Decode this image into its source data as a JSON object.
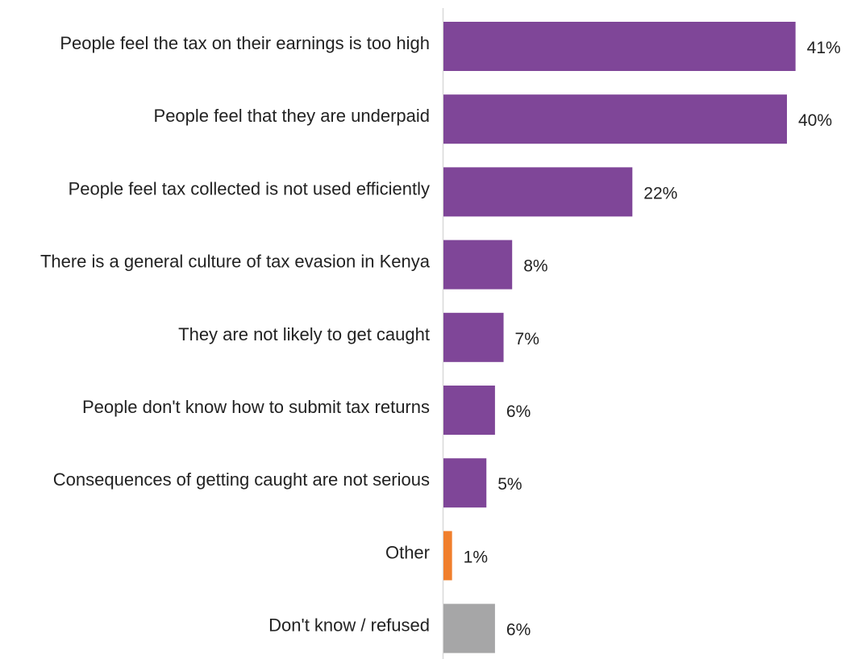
{
  "chart_data": {
    "type": "bar",
    "orientation": "horizontal",
    "title": "",
    "xlabel": "",
    "ylabel": "",
    "categories": [
      "People feel the tax on their earnings is too high",
      "People feel that they are underpaid",
      "People feel tax collected is not used efficiently",
      "There is a general culture of tax evasion in Kenya",
      "They are not likely to get caught",
      "People don't know how to submit tax returns",
      "Consequences of getting caught are not serious",
      "Other",
      "Don't know / refused"
    ],
    "values": [
      41,
      40,
      22,
      8,
      7,
      6,
      5,
      1,
      6
    ],
    "value_labels": [
      "41%",
      "40%",
      "22%",
      "8%",
      "7%",
      "6%",
      "5%",
      "1%",
      "6%"
    ],
    "colors": [
      "#7f4698",
      "#7f4698",
      "#7f4698",
      "#7f4698",
      "#7f4698",
      "#7f4698",
      "#7f4698",
      "#f07f2d",
      "#a6a6a7"
    ],
    "unit": "%",
    "grid": false,
    "legend": "none"
  }
}
